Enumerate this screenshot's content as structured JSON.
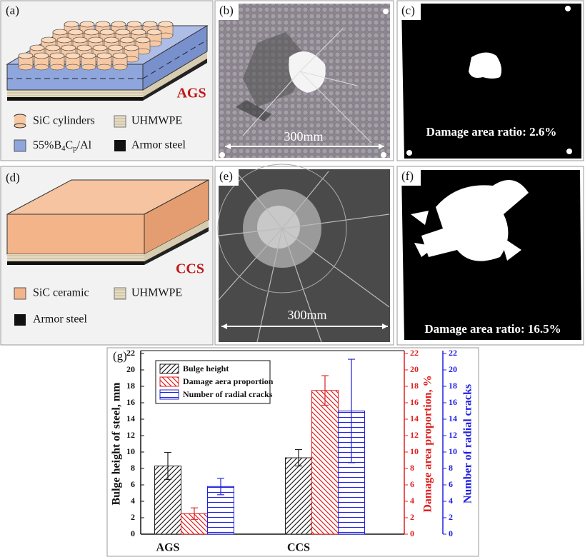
{
  "panels": {
    "a": {
      "label": "(a)",
      "tag": "AGS",
      "legend": [
        "SiC cylinders",
        "UHMWPE",
        [
          "55%B",
          "4",
          "C",
          "p",
          "/Al"
        ],
        "Armor steel"
      ]
    },
    "b": {
      "label": "(b)",
      "scale": "300mm"
    },
    "c": {
      "label": "(c)",
      "note": "Damage area ratio: 2.6%"
    },
    "d": {
      "label": "(d)",
      "tag": "CCS",
      "legend": [
        "SiC ceramic",
        "UHMWPE",
        "Armor steel"
      ]
    },
    "e": {
      "label": "(e)",
      "scale": "300mm"
    },
    "f": {
      "label": "(f)",
      "note": "Damage area ratio: 16.5%"
    }
  },
  "chart_data": {
    "type": "bar",
    "label": "(g)",
    "categories": [
      "AGS",
      "CCS"
    ],
    "ylabel": "Bulge height of steel, mm",
    "y2label": "Damage area proportion, %",
    "y3label": "Number of radial cracks",
    "ylim": [
      0,
      22
    ],
    "yticks": [
      0,
      2,
      4,
      6,
      8,
      10,
      12,
      14,
      16,
      18,
      20,
      22
    ],
    "y2lim": [
      0,
      22
    ],
    "y2ticks": [
      0,
      2,
      4,
      6,
      8,
      10,
      12,
      14,
      16,
      18,
      20,
      22
    ],
    "y3lim": [
      0,
      22
    ],
    "y3ticks": [
      0,
      2,
      4,
      6,
      8,
      10,
      12,
      14,
      16,
      18,
      20,
      22
    ],
    "series": [
      {
        "name": "Bulge height",
        "color": "#222222",
        "axis": "y",
        "values": [
          8.3,
          9.3
        ],
        "errors": [
          1.65,
          1.0
        ]
      },
      {
        "name": "Damage aera proportion",
        "color": "#e02020",
        "axis": "y2",
        "values": [
          2.5,
          17.5
        ],
        "errors": [
          0.7,
          1.8
        ]
      },
      {
        "name": "Number of radial cracks",
        "color": "#2020e0",
        "axis": "y3",
        "values": [
          5.8,
          15.0
        ],
        "errors": [
          1.0,
          6.3
        ]
      }
    ]
  }
}
